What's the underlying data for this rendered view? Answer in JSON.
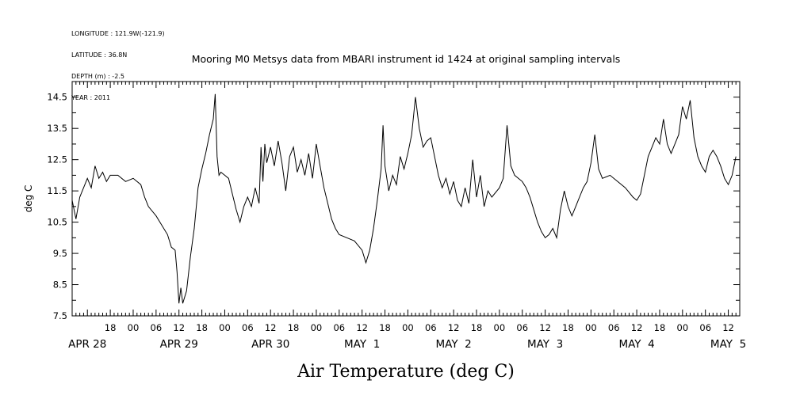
{
  "header": {
    "longitude": "LONGITUDE : 121.9W(-121.9)",
    "latitude": "LATITUDE : 36.8N",
    "depth": "DEPTH (m) : -2.5",
    "year": "YEAR : 2011"
  },
  "chart_data": {
    "type": "line",
    "title": "Mooring M0 Metsys data from MBARI instrument id 1424 at original sampling intervals",
    "xlabel": "Air Temperature (deg C)",
    "ylabel": "deg C",
    "ylim": [
      7.5,
      15.0
    ],
    "yticks": [
      "7.5",
      "8.5",
      "9.5",
      "10.5",
      "11.5",
      "12.5",
      "13.5",
      "14.5"
    ],
    "xlim": [
      "2011-04-28T08:00",
      "2011-05-05T15:00"
    ],
    "hour_ticks": [
      {
        "t": "2011-04-28T18:00",
        "label": "18"
      },
      {
        "t": "2011-04-29T00:00",
        "label": "00"
      },
      {
        "t": "2011-04-29T06:00",
        "label": "06"
      },
      {
        "t": "2011-04-29T12:00",
        "label": "12"
      },
      {
        "t": "2011-04-29T18:00",
        "label": "18"
      },
      {
        "t": "2011-04-30T00:00",
        "label": "00"
      },
      {
        "t": "2011-04-30T06:00",
        "label": "06"
      },
      {
        "t": "2011-04-30T12:00",
        "label": "12"
      },
      {
        "t": "2011-04-30T18:00",
        "label": "18"
      },
      {
        "t": "2011-05-01T00:00",
        "label": "00"
      },
      {
        "t": "2011-05-01T06:00",
        "label": "06"
      },
      {
        "t": "2011-05-01T12:00",
        "label": "12"
      },
      {
        "t": "2011-05-01T18:00",
        "label": "18"
      },
      {
        "t": "2011-05-02T00:00",
        "label": "00"
      },
      {
        "t": "2011-05-02T06:00",
        "label": "06"
      },
      {
        "t": "2011-05-02T12:00",
        "label": "12"
      },
      {
        "t": "2011-05-02T18:00",
        "label": "18"
      },
      {
        "t": "2011-05-03T00:00",
        "label": "00"
      },
      {
        "t": "2011-05-03T06:00",
        "label": "06"
      },
      {
        "t": "2011-05-03T12:00",
        "label": "12"
      },
      {
        "t": "2011-05-03T18:00",
        "label": "18"
      },
      {
        "t": "2011-05-04T00:00",
        "label": "00"
      },
      {
        "t": "2011-05-04T06:00",
        "label": "06"
      },
      {
        "t": "2011-05-04T12:00",
        "label": "12"
      },
      {
        "t": "2011-05-04T18:00",
        "label": "18"
      },
      {
        "t": "2011-05-05T00:00",
        "label": "00"
      },
      {
        "t": "2011-05-05T06:00",
        "label": "06"
      },
      {
        "t": "2011-05-05T12:00",
        "label": "12"
      }
    ],
    "day_labels": [
      {
        "t": "2011-04-28T12:00",
        "label": "APR 28"
      },
      {
        "t": "2011-04-29T12:00",
        "label": "APR 29"
      },
      {
        "t": "2011-04-30T12:00",
        "label": "APR 30"
      },
      {
        "t": "2011-05-01T12:00",
        "label": "MAY  1"
      },
      {
        "t": "2011-05-02T12:00",
        "label": "MAY  2"
      },
      {
        "t": "2011-05-03T12:00",
        "label": "MAY  3"
      },
      {
        "t": "2011-05-04T12:00",
        "label": "MAY  4"
      },
      {
        "t": "2011-05-05T12:00",
        "label": "MAY  5"
      }
    ],
    "series": [
      {
        "color": "#000000",
        "points": [
          [
            "2011-04-28T08:00",
            11.2
          ],
          [
            "2011-04-28T09:00",
            10.6
          ],
          [
            "2011-04-28T10:00",
            11.3
          ],
          [
            "2011-04-28T11:00",
            11.6
          ],
          [
            "2011-04-28T12:00",
            11.9
          ],
          [
            "2011-04-28T13:00",
            11.6
          ],
          [
            "2011-04-28T14:00",
            12.3
          ],
          [
            "2011-04-28T15:00",
            11.9
          ],
          [
            "2011-04-28T16:00",
            12.1
          ],
          [
            "2011-04-28T17:00",
            11.8
          ],
          [
            "2011-04-28T18:00",
            12.0
          ],
          [
            "2011-04-28T20:00",
            12.0
          ],
          [
            "2011-04-28T22:00",
            11.8
          ],
          [
            "2011-04-29T00:00",
            11.9
          ],
          [
            "2011-04-29T02:00",
            11.7
          ],
          [
            "2011-04-29T03:00",
            11.3
          ],
          [
            "2011-04-29T04:00",
            11.0
          ],
          [
            "2011-04-29T06:00",
            10.7
          ],
          [
            "2011-04-29T07:00",
            10.5
          ],
          [
            "2011-04-29T09:00",
            10.1
          ],
          [
            "2011-04-29T10:00",
            9.7
          ],
          [
            "2011-04-29T11:00",
            9.6
          ],
          [
            "2011-04-29T11:30",
            8.9
          ],
          [
            "2011-04-29T12:00",
            7.9
          ],
          [
            "2011-04-29T12:30",
            8.4
          ],
          [
            "2011-04-29T13:00",
            7.9
          ],
          [
            "2011-04-29T14:00",
            8.3
          ],
          [
            "2011-04-29T15:00",
            9.4
          ],
          [
            "2011-04-29T16:00",
            10.3
          ],
          [
            "2011-04-29T17:00",
            11.6
          ],
          [
            "2011-04-29T18:00",
            12.2
          ],
          [
            "2011-04-29T19:00",
            12.7
          ],
          [
            "2011-04-29T20:00",
            13.3
          ],
          [
            "2011-04-29T21:00",
            13.8
          ],
          [
            "2011-04-29T21:30",
            14.6
          ],
          [
            "2011-04-29T22:00",
            12.6
          ],
          [
            "2011-04-29T22:30",
            12.0
          ],
          [
            "2011-04-29T23:00",
            12.1
          ],
          [
            "2011-04-30T00:00",
            12.0
          ],
          [
            "2011-04-30T01:00",
            11.9
          ],
          [
            "2011-04-30T02:00",
            11.4
          ],
          [
            "2011-04-30T03:00",
            10.9
          ],
          [
            "2011-04-30T04:00",
            10.5
          ],
          [
            "2011-04-30T05:00",
            11.0
          ],
          [
            "2011-04-30T06:00",
            11.3
          ],
          [
            "2011-04-30T07:00",
            11.0
          ],
          [
            "2011-04-30T08:00",
            11.6
          ],
          [
            "2011-04-30T09:00",
            11.1
          ],
          [
            "2011-04-30T09:30",
            12.9
          ],
          [
            "2011-04-30T10:00",
            11.8
          ],
          [
            "2011-04-30T10:30",
            13.0
          ],
          [
            "2011-04-30T11:00",
            12.4
          ],
          [
            "2011-04-30T12:00",
            12.9
          ],
          [
            "2011-04-30T13:00",
            12.3
          ],
          [
            "2011-04-30T14:00",
            13.1
          ],
          [
            "2011-04-30T15:00",
            12.4
          ],
          [
            "2011-04-30T16:00",
            11.5
          ],
          [
            "2011-04-30T17:00",
            12.6
          ],
          [
            "2011-04-30T18:00",
            12.9
          ],
          [
            "2011-04-30T19:00",
            12.1
          ],
          [
            "2011-04-30T20:00",
            12.5
          ],
          [
            "2011-04-30T21:00",
            12.0
          ],
          [
            "2011-04-30T22:00",
            12.7
          ],
          [
            "2011-04-30T23:00",
            11.9
          ],
          [
            "2011-05-01T00:00",
            13.0
          ],
          [
            "2011-05-01T01:00",
            12.3
          ],
          [
            "2011-05-01T02:00",
            11.6
          ],
          [
            "2011-05-01T03:00",
            11.1
          ],
          [
            "2011-05-01T04:00",
            10.6
          ],
          [
            "2011-05-01T05:00",
            10.3
          ],
          [
            "2011-05-01T06:00",
            10.1
          ],
          [
            "2011-05-01T08:00",
            10.0
          ],
          [
            "2011-05-01T10:00",
            9.9
          ],
          [
            "2011-05-01T12:00",
            9.6
          ],
          [
            "2011-05-01T13:00",
            9.2
          ],
          [
            "2011-05-01T14:00",
            9.6
          ],
          [
            "2011-05-01T15:00",
            10.3
          ],
          [
            "2011-05-01T16:00",
            11.2
          ],
          [
            "2011-05-01T17:00",
            12.2
          ],
          [
            "2011-05-01T17:30",
            13.6
          ],
          [
            "2011-05-01T18:00",
            12.3
          ],
          [
            "2011-05-01T19:00",
            11.5
          ],
          [
            "2011-05-01T20:00",
            12.0
          ],
          [
            "2011-05-01T21:00",
            11.7
          ],
          [
            "2011-05-01T22:00",
            12.6
          ],
          [
            "2011-05-01T23:00",
            12.2
          ],
          [
            "2011-05-02T00:00",
            12.7
          ],
          [
            "2011-05-02T01:00",
            13.3
          ],
          [
            "2011-05-02T02:00",
            14.5
          ],
          [
            "2011-05-02T03:00",
            13.5
          ],
          [
            "2011-05-02T04:00",
            12.9
          ],
          [
            "2011-05-02T05:00",
            13.1
          ],
          [
            "2011-05-02T06:00",
            13.2
          ],
          [
            "2011-05-02T07:00",
            12.6
          ],
          [
            "2011-05-02T08:00",
            12.0
          ],
          [
            "2011-05-02T09:00",
            11.6
          ],
          [
            "2011-05-02T10:00",
            11.9
          ],
          [
            "2011-05-02T11:00",
            11.4
          ],
          [
            "2011-05-02T12:00",
            11.8
          ],
          [
            "2011-05-02T13:00",
            11.2
          ],
          [
            "2011-05-02T14:00",
            11.0
          ],
          [
            "2011-05-02T15:00",
            11.6
          ],
          [
            "2011-05-02T16:00",
            11.1
          ],
          [
            "2011-05-02T17:00",
            12.5
          ],
          [
            "2011-05-02T18:00",
            11.3
          ],
          [
            "2011-05-02T19:00",
            12.0
          ],
          [
            "2011-05-02T20:00",
            11.0
          ],
          [
            "2011-05-02T21:00",
            11.5
          ],
          [
            "2011-05-02T22:00",
            11.3
          ],
          [
            "2011-05-03T00:00",
            11.6
          ],
          [
            "2011-05-03T01:00",
            11.9
          ],
          [
            "2011-05-03T02:00",
            13.6
          ],
          [
            "2011-05-03T03:00",
            12.3
          ],
          [
            "2011-05-03T04:00",
            12.0
          ],
          [
            "2011-05-03T06:00",
            11.8
          ],
          [
            "2011-05-03T07:00",
            11.6
          ],
          [
            "2011-05-03T08:00",
            11.3
          ],
          [
            "2011-05-03T09:00",
            10.9
          ],
          [
            "2011-05-03T10:00",
            10.5
          ],
          [
            "2011-05-03T11:00",
            10.2
          ],
          [
            "2011-05-03T12:00",
            10.0
          ],
          [
            "2011-05-03T13:00",
            10.1
          ],
          [
            "2011-05-03T14:00",
            10.3
          ],
          [
            "2011-05-03T15:00",
            10.0
          ],
          [
            "2011-05-03T16:00",
            10.9
          ],
          [
            "2011-05-03T17:00",
            11.5
          ],
          [
            "2011-05-03T18:00",
            11.0
          ],
          [
            "2011-05-03T19:00",
            10.7
          ],
          [
            "2011-05-03T20:00",
            11.0
          ],
          [
            "2011-05-03T21:00",
            11.3
          ],
          [
            "2011-05-03T22:00",
            11.6
          ],
          [
            "2011-05-03T23:00",
            11.8
          ],
          [
            "2011-05-04T00:00",
            12.4
          ],
          [
            "2011-05-04T01:00",
            13.3
          ],
          [
            "2011-05-04T02:00",
            12.2
          ],
          [
            "2011-05-04T03:00",
            11.9
          ],
          [
            "2011-05-04T05:00",
            12.0
          ],
          [
            "2011-05-04T07:00",
            11.8
          ],
          [
            "2011-05-04T09:00",
            11.6
          ],
          [
            "2011-05-04T11:00",
            11.3
          ],
          [
            "2011-05-04T12:00",
            11.2
          ],
          [
            "2011-05-04T13:00",
            11.4
          ],
          [
            "2011-05-04T14:00",
            12.0
          ],
          [
            "2011-05-04T15:00",
            12.6
          ],
          [
            "2011-05-04T16:00",
            12.9
          ],
          [
            "2011-05-04T17:00",
            13.2
          ],
          [
            "2011-05-04T18:00",
            13.0
          ],
          [
            "2011-05-04T19:00",
            13.8
          ],
          [
            "2011-05-04T20:00",
            13.0
          ],
          [
            "2011-05-04T21:00",
            12.7
          ],
          [
            "2011-05-04T22:00",
            13.0
          ],
          [
            "2011-05-04T23:00",
            13.3
          ],
          [
            "2011-05-05T00:00",
            14.2
          ],
          [
            "2011-05-05T01:00",
            13.8
          ],
          [
            "2011-05-05T02:00",
            14.4
          ],
          [
            "2011-05-05T03:00",
            13.2
          ],
          [
            "2011-05-05T04:00",
            12.6
          ],
          [
            "2011-05-05T05:00",
            12.3
          ],
          [
            "2011-05-05T06:00",
            12.1
          ],
          [
            "2011-05-05T07:00",
            12.6
          ],
          [
            "2011-05-05T08:00",
            12.8
          ],
          [
            "2011-05-05T09:00",
            12.6
          ],
          [
            "2011-05-05T10:00",
            12.3
          ],
          [
            "2011-05-05T11:00",
            11.9
          ],
          [
            "2011-05-05T12:00",
            11.7
          ],
          [
            "2011-05-05T13:00",
            12.0
          ],
          [
            "2011-05-05T14:00",
            12.6
          ]
        ]
      }
    ],
    "grid": false
  }
}
